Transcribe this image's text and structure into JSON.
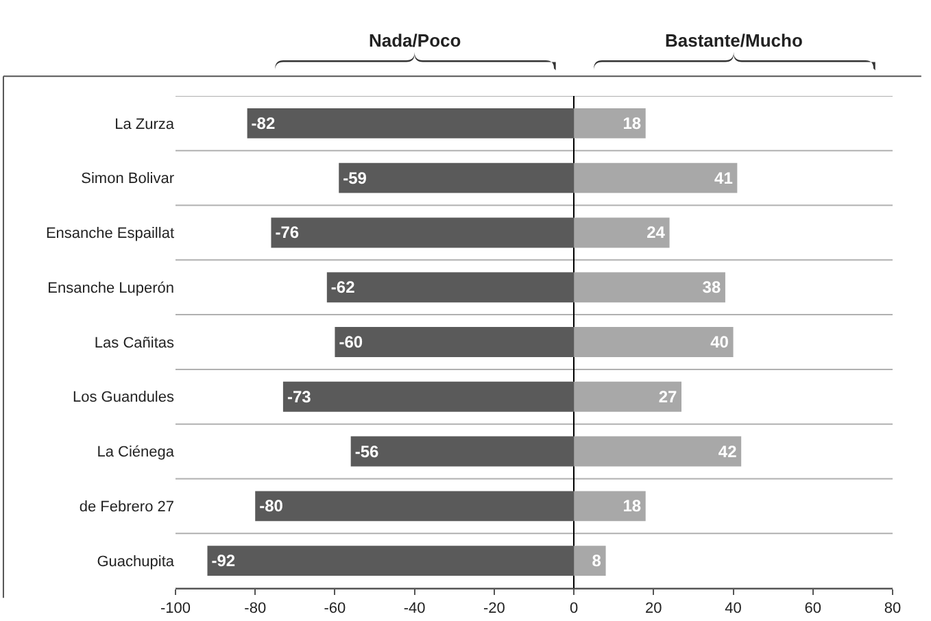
{
  "chart_data": {
    "type": "bar",
    "orientation": "horizontal",
    "stacked": true,
    "data_labels": true,
    "grid": "y",
    "categories": [
      "La Zurza",
      "Simon Bolivar",
      "Ensanche Espaillat",
      "Ensanche Luperón",
      "Las Cañitas",
      "Los Guandules",
      "La Ciénega",
      "de Febrero 27",
      "Guachupita"
    ],
    "series": [
      {
        "color": "#5a5a5a",
        "values": [
          -82,
          -59,
          -76,
          -62,
          -60,
          -73,
          -56,
          -80,
          -92
        ]
      },
      {
        "color": "#a8a8a8",
        "values": [
          18,
          41,
          24,
          38,
          40,
          27,
          42,
          18,
          8
        ]
      }
    ],
    "xlim": [
      -100,
      80
    ],
    "xticks": [
      -100,
      -80,
      -60,
      -40,
      -20,
      0,
      20,
      40,
      60,
      80
    ],
    "annotations": [
      "Nada/Poco",
      "Bastante/Mucho"
    ]
  }
}
